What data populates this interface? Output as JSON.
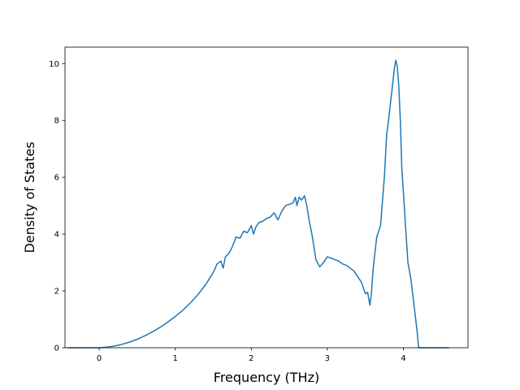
{
  "chart_data": {
    "type": "line",
    "title": "",
    "xlabel": "Frequency (THz)",
    "ylabel": "Density of States",
    "xlim": [
      -0.45,
      4.85
    ],
    "ylim": [
      0,
      10.58
    ],
    "xticks": [
      0,
      1,
      2,
      3,
      4
    ],
    "xtick_labels": [
      "0",
      "1",
      "2",
      "3",
      "4"
    ],
    "yticks": [
      0,
      2,
      4,
      6,
      8,
      10
    ],
    "ytick_labels": [
      "0",
      "2",
      "4",
      "6",
      "8",
      "10"
    ],
    "grid": false,
    "legend": "none",
    "line_color": "#1f77b4",
    "series": [
      {
        "x": [
          -0.42,
          -0.2,
          0.0,
          0.1,
          0.2,
          0.3,
          0.4,
          0.5,
          0.6,
          0.7,
          0.8,
          0.9,
          1.0,
          1.1,
          1.2,
          1.3,
          1.4,
          1.5,
          1.55,
          1.6,
          1.63,
          1.66,
          1.7,
          1.75,
          1.8,
          1.85,
          1.9,
          1.95,
          2.0,
          2.03,
          2.06,
          2.1,
          2.15,
          2.2,
          2.25,
          2.3,
          2.35,
          2.4,
          2.45,
          2.5,
          2.55,
          2.58,
          2.6,
          2.63,
          2.66,
          2.7,
          2.73,
          2.76,
          2.8,
          2.85,
          2.9,
          2.95,
          3.0,
          3.05,
          3.1,
          3.15,
          3.2,
          3.25,
          3.3,
          3.35,
          3.4,
          3.45,
          3.5,
          3.53,
          3.56,
          3.58,
          3.6,
          3.62,
          3.65,
          3.7,
          3.75,
          3.78,
          3.8,
          3.83,
          3.86,
          3.88,
          3.9,
          3.92,
          3.94,
          3.96,
          3.98,
          4.0,
          4.03,
          4.06,
          4.1,
          4.14,
          4.18,
          4.2,
          4.25,
          4.4,
          4.6
        ],
        "values": [
          0.0,
          0.0,
          0.0,
          0.02,
          0.06,
          0.12,
          0.2,
          0.3,
          0.42,
          0.56,
          0.72,
          0.9,
          1.1,
          1.32,
          1.58,
          1.88,
          2.22,
          2.65,
          2.95,
          3.05,
          2.8,
          3.2,
          3.3,
          3.55,
          3.9,
          3.85,
          4.1,
          4.05,
          4.3,
          4.0,
          4.25,
          4.4,
          4.45,
          4.55,
          4.6,
          4.75,
          4.5,
          4.8,
          5.0,
          5.05,
          5.1,
          5.3,
          5.0,
          5.3,
          5.2,
          5.35,
          5.0,
          4.5,
          3.95,
          3.1,
          2.85,
          3.0,
          3.2,
          3.15,
          3.1,
          3.05,
          2.95,
          2.9,
          2.8,
          2.7,
          2.5,
          2.3,
          1.9,
          1.95,
          1.5,
          1.9,
          2.7,
          3.2,
          3.9,
          4.3,
          6.0,
          7.5,
          7.9,
          8.6,
          9.3,
          9.8,
          10.12,
          9.9,
          9.2,
          8.0,
          6.3,
          5.5,
          4.2,
          3.0,
          2.4,
          1.5,
          0.6,
          0.0,
          0.0,
          0.0,
          0.0
        ]
      }
    ]
  }
}
